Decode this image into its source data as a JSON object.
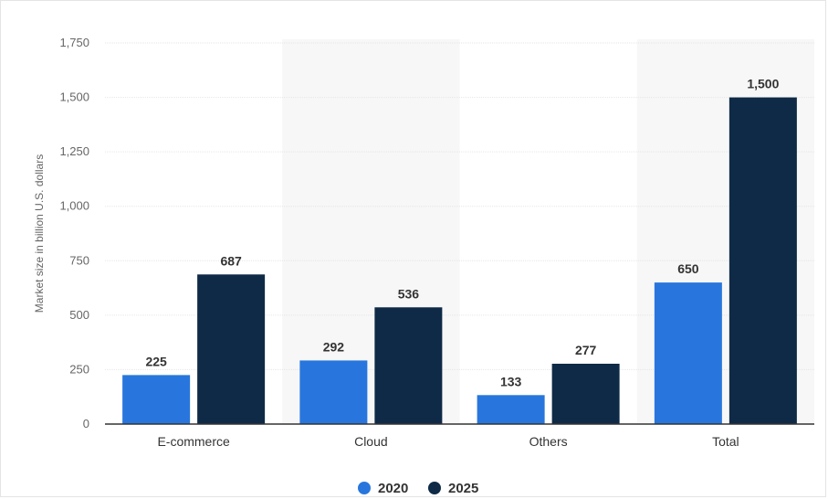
{
  "chart_data": {
    "type": "bar",
    "categories": [
      "E-commerce",
      "Cloud",
      "Others",
      "Total"
    ],
    "series": [
      {
        "name": "2020",
        "values": [
          225,
          292,
          133,
          650
        ],
        "color": "#2876dd"
      },
      {
        "name": "2025",
        "values": [
          687,
          536,
          277,
          1500
        ],
        "color": "#0f2a46"
      }
    ],
    "data_labels": [
      [
        "225",
        "292",
        "133",
        "650"
      ],
      [
        "687",
        "536",
        "277",
        "1,500"
      ]
    ],
    "ylabel": "Market size in billion U.S. dollars",
    "ylim": [
      0,
      1750
    ],
    "yticks": [
      0,
      250,
      500,
      750,
      1000,
      1250,
      1500,
      1750
    ],
    "ytick_labels": [
      "0",
      "250",
      "500",
      "750",
      "1,000",
      "1,250",
      "1,500",
      "1,750"
    ],
    "grid": true,
    "legend_position": "bottom-center"
  }
}
